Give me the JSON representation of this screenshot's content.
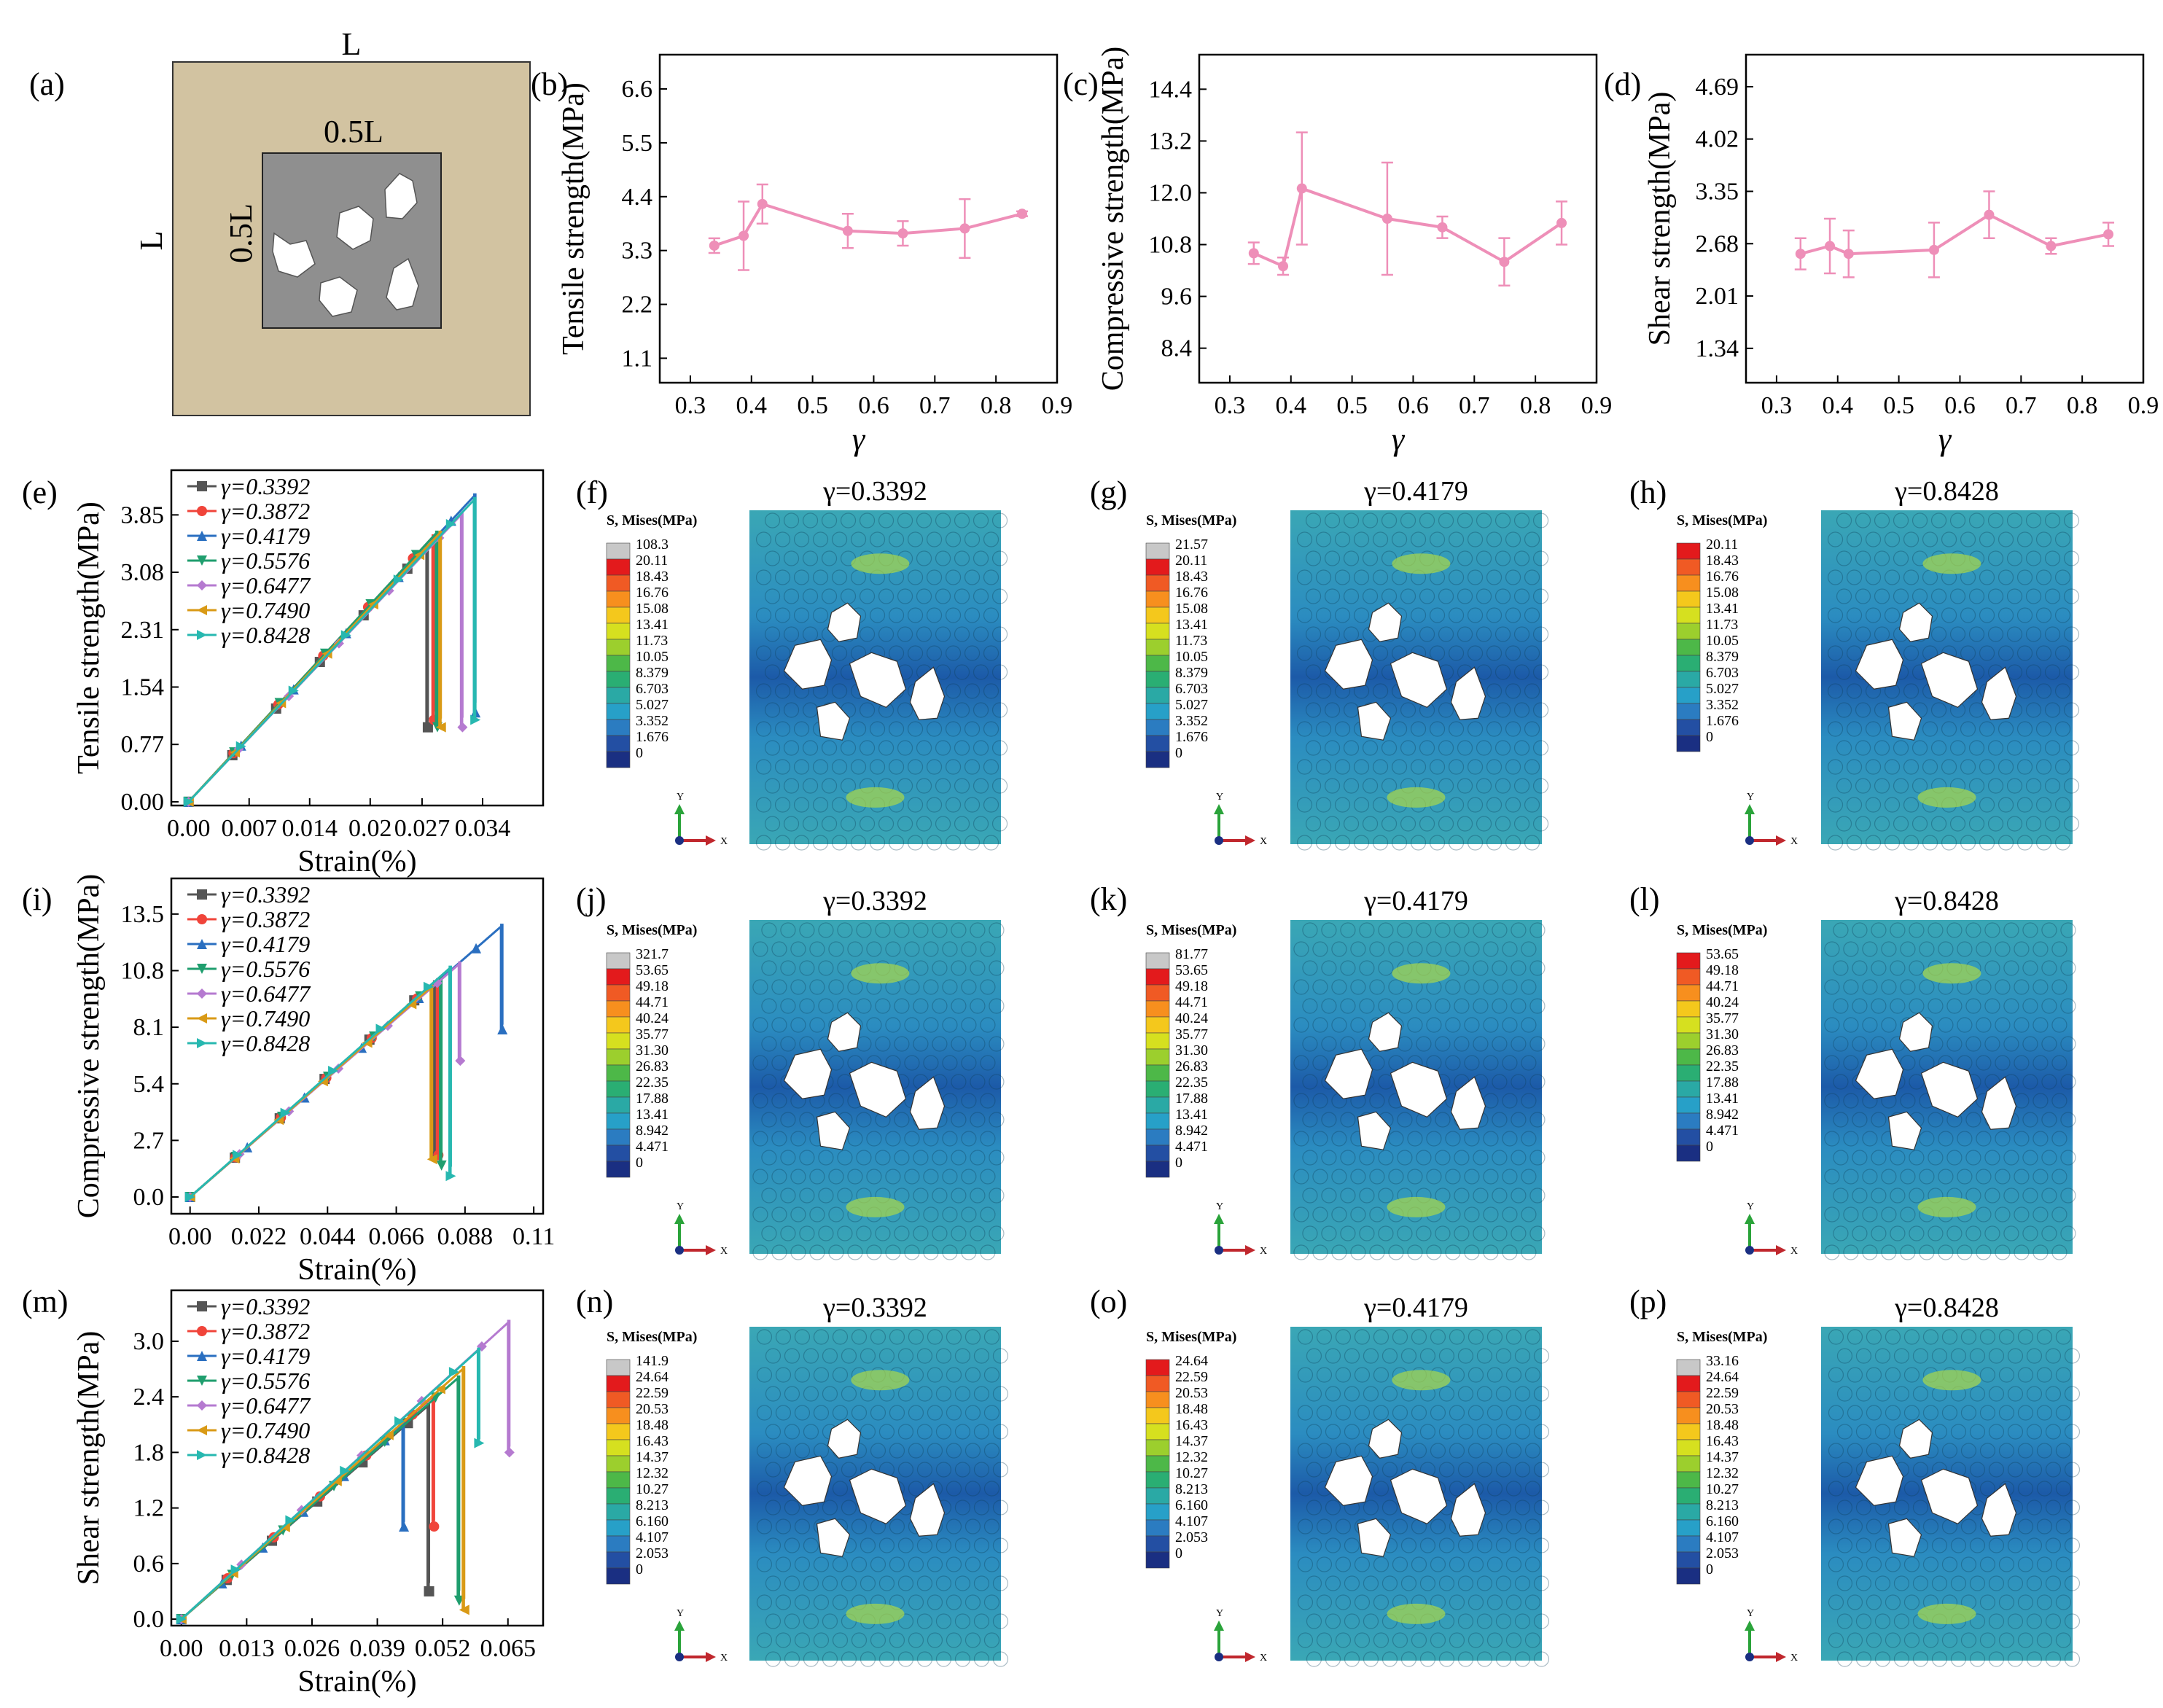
{
  "panel_labels": [
    "(a)",
    "(b)",
    "(c)",
    "(d)",
    "(e)",
    "(f)",
    "(g)",
    "(h)",
    "(i)",
    "(j)",
    "(k)",
    "(l)",
    "(m)",
    "(n)",
    "(o)",
    "(p)"
  ],
  "schematic": {
    "outer_top": "L",
    "outer_left": "L",
    "inner_top": "0.5L",
    "inner_left": "0.5L",
    "colors": {
      "outer": "#d2c3a1",
      "inner": "#8f8f8f",
      "inclusion": "#ffffff"
    }
  },
  "colors": {
    "gamma_line": "#ee8fb8",
    "series": [
      "#555555",
      "#f0443a",
      "#2a6fc0",
      "#1f9e6e",
      "#b57ad0",
      "#d99a16",
      "#27b8b0"
    ],
    "field_low": "#1c5aa8",
    "field_mid": "#33a3b4",
    "field_high": "#e8e24a"
  },
  "chart_data": [
    {
      "panel": "(b)",
      "type": "line",
      "ylabel": "Tensile strength(MPa)",
      "xlabel": "γ",
      "xlim": [
        0.25,
        0.9
      ],
      "ylim": [
        0.6,
        7.3
      ],
      "xticks": [
        "0.3",
        "0.4",
        "0.5",
        "0.6",
        "0.7",
        "0.8",
        "0.9"
      ],
      "yticks": [
        "1.1",
        "2.2",
        "3.3",
        "4.4",
        "5.5",
        "6.6"
      ],
      "x": [
        0.3392,
        0.3872,
        0.4179,
        0.5576,
        0.6477,
        0.749,
        0.8428
      ],
      "y": [
        3.4,
        3.6,
        4.25,
        3.7,
        3.65,
        3.75,
        4.05
      ],
      "err": [
        0.15,
        0.7,
        0.4,
        0.35,
        0.25,
        0.6,
        0.05
      ]
    },
    {
      "panel": "(c)",
      "type": "line",
      "ylabel": "Compressive strength(MPa)",
      "xlabel": "γ",
      "xlim": [
        0.25,
        0.9
      ],
      "ylim": [
        7.6,
        15.2
      ],
      "xticks": [
        "0.3",
        "0.4",
        "0.5",
        "0.6",
        "0.7",
        "0.8",
        "0.9"
      ],
      "yticks": [
        "8.4",
        "9.6",
        "10.8",
        "12.0",
        "13.2",
        "14.4"
      ],
      "x": [
        0.3392,
        0.3872,
        0.4179,
        0.5576,
        0.6477,
        0.749,
        0.8428
      ],
      "y": [
        10.6,
        10.3,
        12.1,
        11.4,
        11.2,
        10.4,
        11.3
      ],
      "err": [
        0.25,
        0.2,
        1.3,
        1.3,
        0.25,
        0.55,
        0.5
      ]
    },
    {
      "panel": "(d)",
      "type": "line",
      "ylabel": "Shear strength(MPa)",
      "xlabel": "γ",
      "xlim": [
        0.25,
        0.9
      ],
      "ylim": [
        0.9,
        5.1
      ],
      "xticks": [
        "0.3",
        "0.4",
        "0.5",
        "0.6",
        "0.7",
        "0.8",
        "0.9"
      ],
      "yticks": [
        "1.34",
        "2.01",
        "2.68",
        "3.35",
        "4.02",
        "4.69"
      ],
      "x": [
        0.3392,
        0.3872,
        0.4179,
        0.5576,
        0.6477,
        0.749,
        0.8428
      ],
      "y": [
        2.55,
        2.65,
        2.55,
        2.6,
        3.05,
        2.65,
        2.8
      ],
      "err": [
        0.2,
        0.35,
        0.3,
        0.35,
        0.3,
        0.1,
        0.15
      ]
    },
    {
      "panel": "(e)",
      "type": "line",
      "ylabel": "Tensile strength(MPa)",
      "xlabel": "Strain(%)",
      "xlim": [
        -0.002,
        0.041
      ],
      "ylim": [
        -0.05,
        4.45
      ],
      "xticks": [
        "0.00",
        "0.007",
        "0.014",
        "0.02",
        "0.027",
        "0.034"
      ],
      "xtick_vals": [
        0,
        0.007,
        0.014,
        0.021,
        0.027,
        0.034
      ],
      "yticks": [
        "0.00",
        "0.77",
        "1.54",
        "2.31",
        "3.08",
        "3.85"
      ],
      "series": [
        {
          "name": "γ=0.3392",
          "peak": [
            0.0275,
            3.4
          ],
          "end": 1.0
        },
        {
          "name": "γ=0.3872",
          "peak": [
            0.0282,
            3.55
          ],
          "end": 1.1
        },
        {
          "name": "γ=0.4179",
          "peak": [
            0.033,
            4.1
          ],
          "end": 1.2
        },
        {
          "name": "γ=0.5576",
          "peak": [
            0.0286,
            3.6
          ],
          "end": 1.0
        },
        {
          "name": "γ=0.6477",
          "peak": [
            0.0315,
            3.85
          ],
          "end": 1.0
        },
        {
          "name": "γ=0.7490",
          "peak": [
            0.029,
            3.6
          ],
          "end": 1.0
        },
        {
          "name": "γ=0.8428",
          "peak": [
            0.033,
            4.05
          ],
          "end": 1.1
        }
      ]
    },
    {
      "panel": "(i)",
      "type": "line",
      "ylabel": "Compressive strength(MPa)",
      "xlabel": "Strain(%)",
      "xlim": [
        -0.006,
        0.113
      ],
      "ylim": [
        -0.8,
        15.2
      ],
      "xticks": [
        "0.00",
        "0.022",
        "0.044",
        "0.066",
        "0.088",
        "0.11"
      ],
      "xtick_vals": [
        0,
        0.022,
        0.044,
        0.066,
        0.088,
        0.11
      ],
      "yticks": [
        "0.0",
        "2.7",
        "5.4",
        "8.1",
        "10.8",
        "13.5"
      ],
      "series": [
        {
          "name": "γ=0.3392",
          "peak": [
            0.078,
            10.2
          ],
          "end": 2.0
        },
        {
          "name": "γ=0.3872",
          "peak": [
            0.079,
            10.3
          ],
          "end": 2.0
        },
        {
          "name": "γ=0.4179",
          "peak": [
            0.0995,
            12.9
          ],
          "end": 8.0
        },
        {
          "name": "γ=0.5576",
          "peak": [
            0.08,
            10.4
          ],
          "end": 1.5
        },
        {
          "name": "γ=0.6477",
          "peak": [
            0.086,
            11.1
          ],
          "end": 6.5
        },
        {
          "name": "γ=0.7490",
          "peak": [
            0.077,
            10.0
          ],
          "end": 1.8
        },
        {
          "name": "γ=0.8428",
          "peak": [
            0.083,
            10.9
          ],
          "end": 1.0
        }
      ]
    },
    {
      "panel": "(m)",
      "type": "line",
      "ylabel": "Shear strength(MPa)",
      "xlabel": "Strain(%)",
      "xlim": [
        -0.002,
        0.072
      ],
      "ylim": [
        -0.07,
        3.55
      ],
      "xticks": [
        "0.00",
        "0.013",
        "0.026",
        "0.039",
        "0.052",
        "0.065"
      ],
      "xtick_vals": [
        0,
        0.013,
        0.026,
        0.039,
        0.052,
        0.065
      ],
      "yticks": [
        "0.0",
        "0.6",
        "1.2",
        "1.8",
        "2.4",
        "3.0"
      ],
      "series": [
        {
          "name": "γ=0.3392",
          "peak": [
            0.049,
            2.3
          ],
          "end": 0.3
        },
        {
          "name": "γ=0.3872",
          "peak": [
            0.05,
            2.4
          ],
          "end": 1.0
        },
        {
          "name": "γ=0.4179",
          "peak": [
            0.044,
            2.1
          ],
          "end": 1.0
        },
        {
          "name": "γ=0.5576",
          "peak": [
            0.055,
            2.6
          ],
          "end": 0.2
        },
        {
          "name": "γ=0.6477",
          "peak": [
            0.065,
            3.2
          ],
          "end": 1.8
        },
        {
          "name": "γ=0.7490",
          "peak": [
            0.056,
            2.7
          ],
          "end": 0.1
        },
        {
          "name": "γ=0.8428",
          "peak": [
            0.059,
            2.9
          ],
          "end": 1.9
        }
      ]
    }
  ],
  "contour_maps": [
    {
      "panel": "(f)",
      "title": "γ=0.3392",
      "cb_title": "S, Mises(MPa)",
      "cb_values": [
        "108.3",
        "20.11",
        "18.43",
        "16.76",
        "15.08",
        "13.41",
        "11.73",
        "10.05",
        "8.379",
        "6.703",
        "5.027",
        "3.352",
        "1.676",
        "0"
      ]
    },
    {
      "panel": "(g)",
      "title": "γ=0.4179",
      "cb_title": "S, Mises(MPa)",
      "cb_values": [
        "21.57",
        "20.11",
        "18.43",
        "16.76",
        "15.08",
        "13.41",
        "11.73",
        "10.05",
        "8.379",
        "6.703",
        "5.027",
        "3.352",
        "1.676",
        "0"
      ]
    },
    {
      "panel": "(h)",
      "title": "γ=0.8428",
      "cb_title": "S, Mises(MPa)",
      "cb_values": [
        "20.11",
        "18.43",
        "16.76",
        "15.08",
        "13.41",
        "11.73",
        "10.05",
        "8.379",
        "6.703",
        "5.027",
        "3.352",
        "1.676",
        "0"
      ]
    },
    {
      "panel": "(j)",
      "title": "γ=0.3392",
      "cb_title": "S, Mises(MPa)",
      "cb_values": [
        "321.7",
        "53.65",
        "49.18",
        "44.71",
        "40.24",
        "35.77",
        "31.30",
        "26.83",
        "22.35",
        "17.88",
        "13.41",
        "8.942",
        "4.471",
        "0"
      ]
    },
    {
      "panel": "(k)",
      "title": "γ=0.4179",
      "cb_title": "S, Mises(MPa)",
      "cb_values": [
        "81.77",
        "53.65",
        "49.18",
        "44.71",
        "40.24",
        "35.77",
        "31.30",
        "26.83",
        "22.35",
        "17.88",
        "13.41",
        "8.942",
        "4.471",
        "0"
      ]
    },
    {
      "panel": "(l)",
      "title": "γ=0.8428",
      "cb_title": "S, Mises(MPa)",
      "cb_values": [
        "53.65",
        "49.18",
        "44.71",
        "40.24",
        "35.77",
        "31.30",
        "26.83",
        "22.35",
        "17.88",
        "13.41",
        "8.942",
        "4.471",
        "0"
      ]
    },
    {
      "panel": "(n)",
      "title": "γ=0.3392",
      "cb_title": "S, Mises(MPa)",
      "cb_values": [
        "141.9",
        "24.64",
        "22.59",
        "20.53",
        "18.48",
        "16.43",
        "14.37",
        "12.32",
        "10.27",
        "8.213",
        "6.160",
        "4.107",
        "2.053",
        "0"
      ]
    },
    {
      "panel": "(o)",
      "title": "γ=0.4179",
      "cb_title": "S, Mises(MPa)",
      "cb_values": [
        "24.64",
        "22.59",
        "20.53",
        "18.48",
        "16.43",
        "14.37",
        "12.32",
        "10.27",
        "8.213",
        "6.160",
        "4.107",
        "2.053",
        "0"
      ]
    },
    {
      "panel": "(p)",
      "title": "γ=0.8428",
      "cb_title": "S, Mises(MPa)",
      "cb_values": [
        "33.16",
        "24.64",
        "22.59",
        "20.53",
        "18.48",
        "16.43",
        "14.37",
        "12.32",
        "10.27",
        "8.213",
        "6.160",
        "4.107",
        "2.053",
        "0"
      ]
    }
  ],
  "triad": {
    "y": "Y",
    "x": "X"
  }
}
